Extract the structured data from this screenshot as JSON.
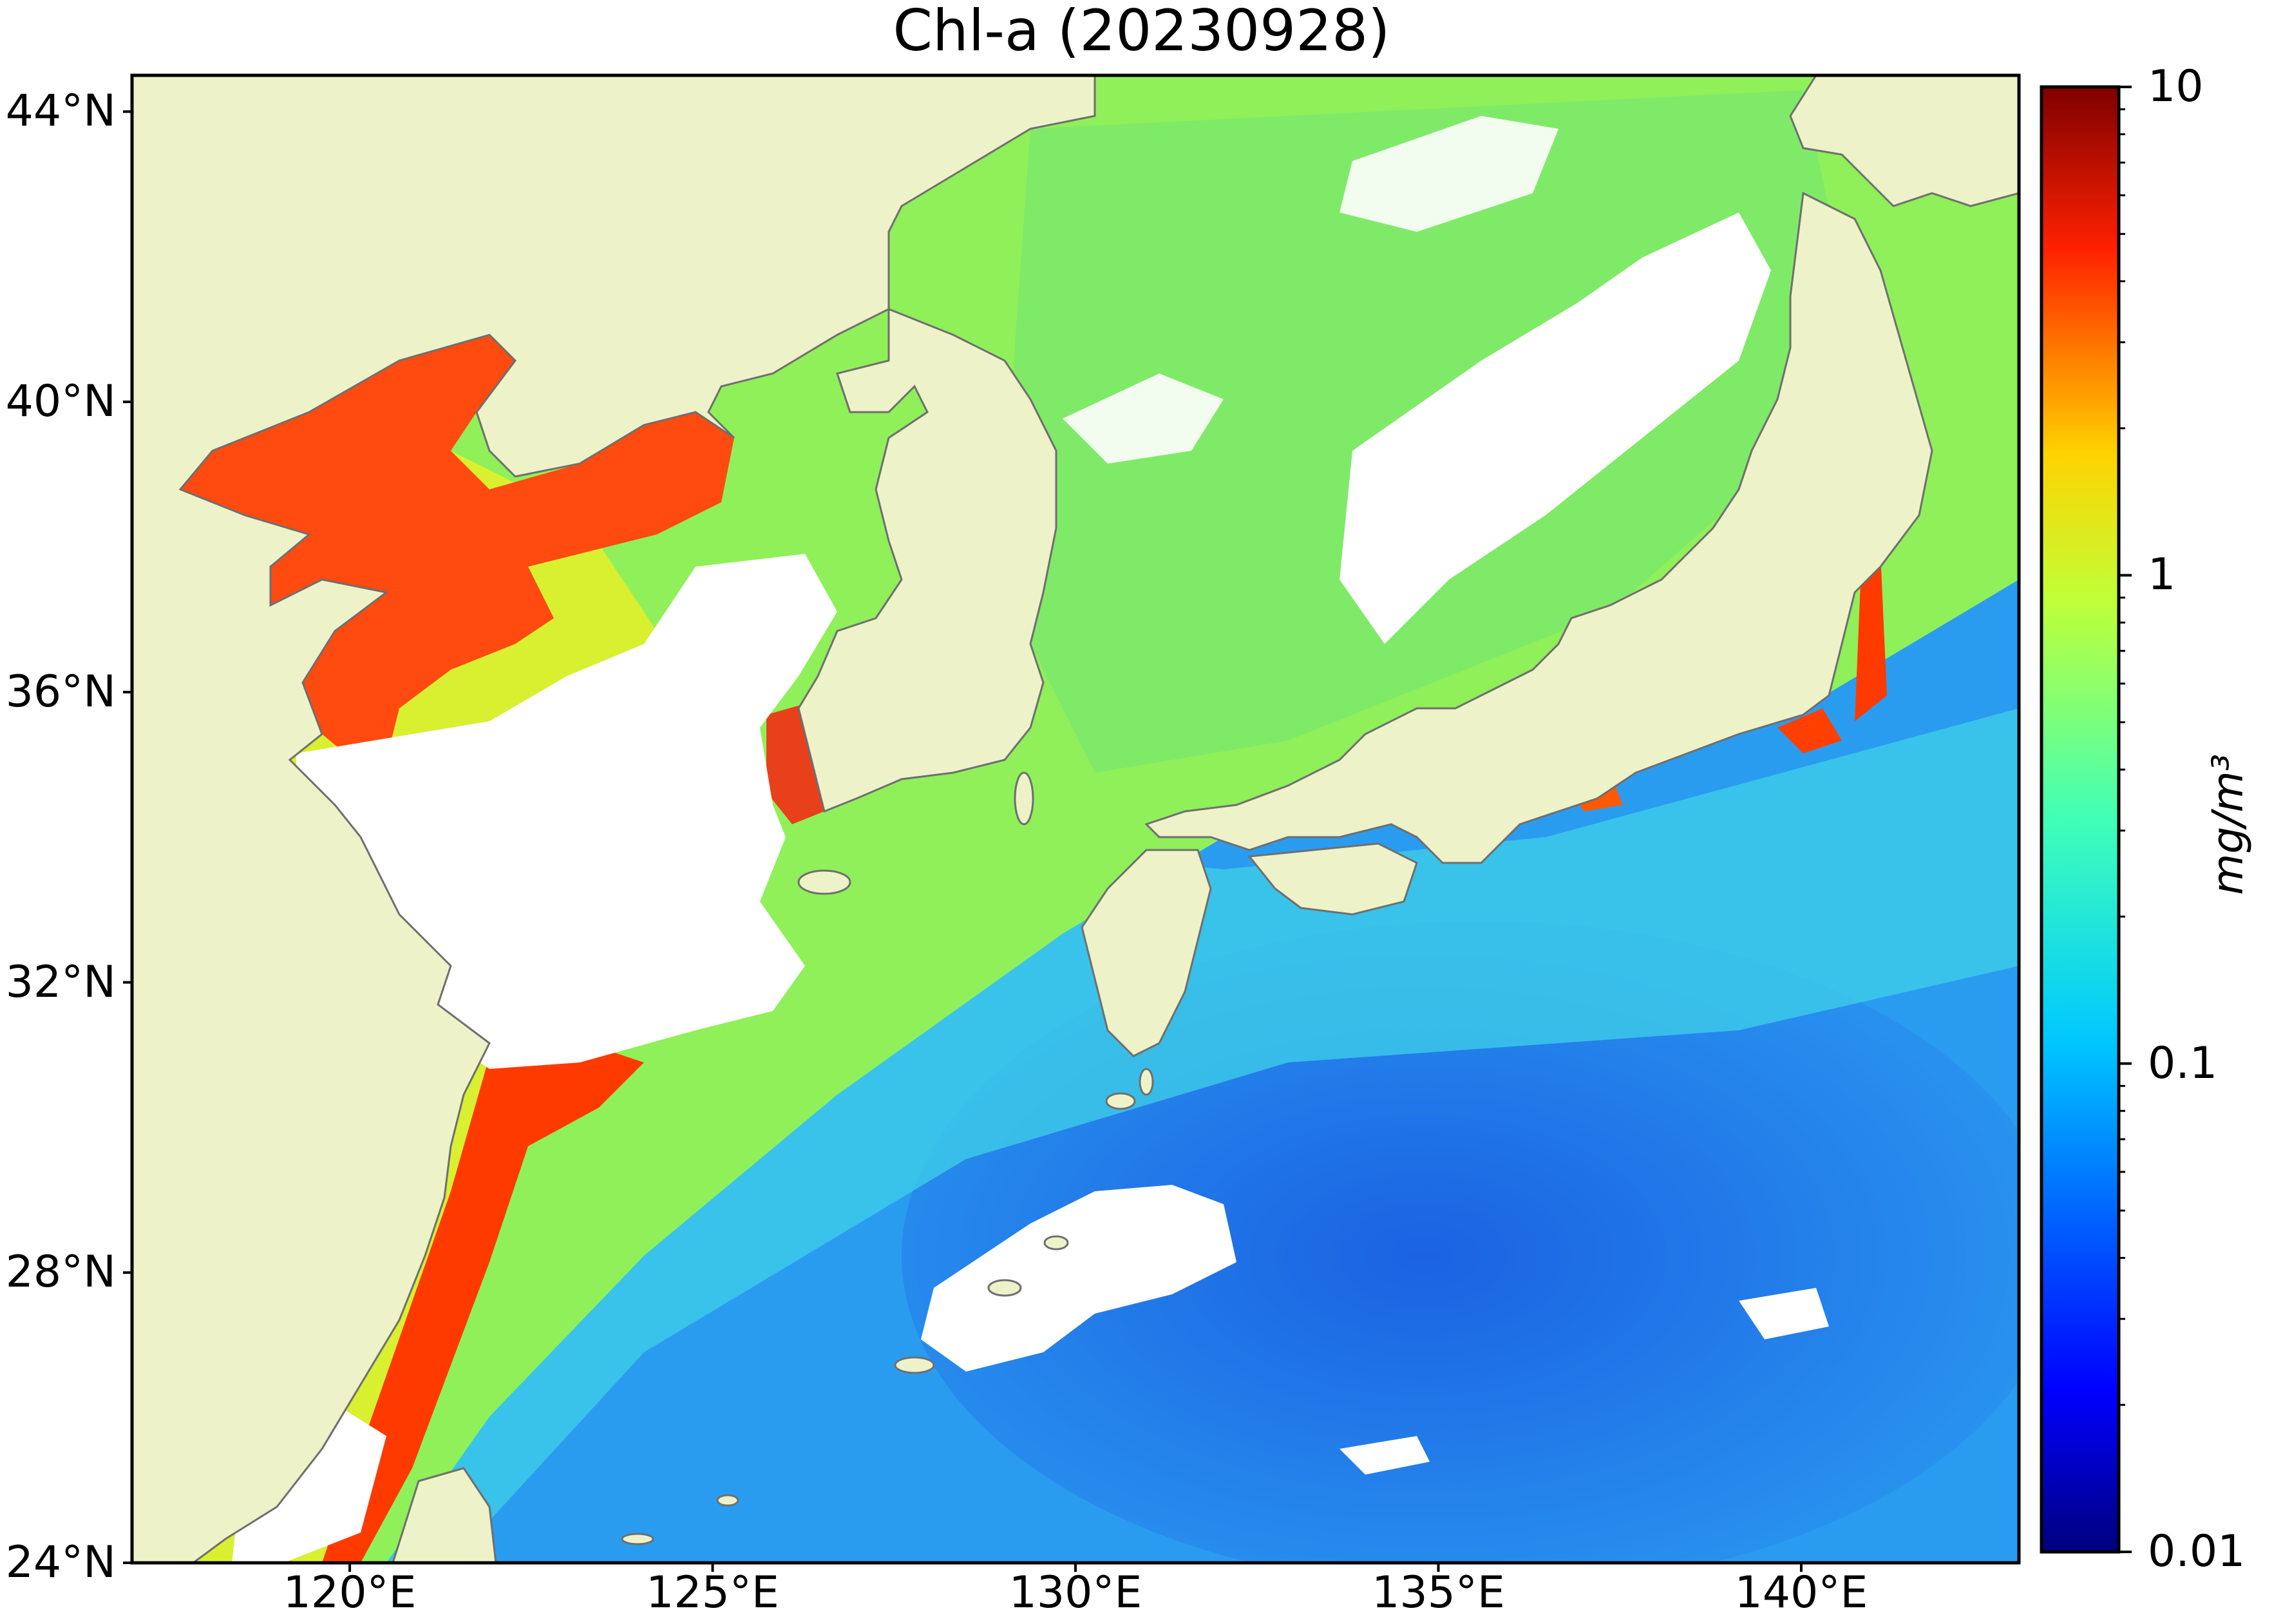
{
  "title": "Chl-a (20230928)",
  "axes": {
    "lat_ticks": [
      "44°N",
      "40°N",
      "36°N",
      "32°N",
      "28°N",
      "24°N"
    ],
    "lon_ticks": [
      "120°E",
      "125°E",
      "130°E",
      "135°E",
      "140°E"
    ],
    "lat_range": [
      24,
      44.5
    ],
    "lon_range": [
      117,
      143
    ]
  },
  "colorbar": {
    "ticks": [
      "10",
      "1",
      "0.1",
      "0.01"
    ],
    "unit": "mg/m³",
    "scale": "log",
    "range": [
      0.01,
      10
    ],
    "colormap": "jet"
  },
  "colors": {
    "land": "#eef2c8",
    "coast": "#6f6f6f",
    "no_data": "#ffffff",
    "coastal_high": "#ff3a00",
    "shelf_mid": "#9ef04a",
    "open_ocean_low": "#1e8cf0"
  }
}
